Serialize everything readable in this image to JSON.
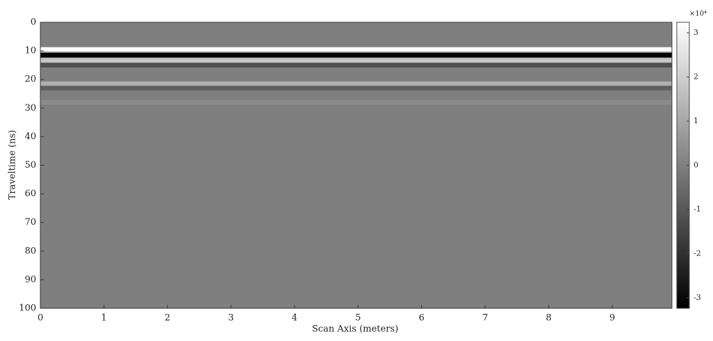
{
  "chart_data": {
    "type": "heatmap",
    "xlabel": "Scan Axis (meters)",
    "ylabel": "Traveltime (ns)",
    "xlim": [
      0,
      9.94
    ],
    "xticks": [
      0,
      1,
      2,
      3,
      4,
      5,
      6,
      7,
      8,
      9
    ],
    "ylim": [
      0,
      100
    ],
    "yticks": [
      0,
      10,
      20,
      30,
      40,
      50,
      60,
      70,
      80,
      90,
      100
    ],
    "y_inverted": true,
    "colorbar_scale": "×10⁴",
    "clim": [
      -3.24,
      3.24
    ],
    "colorbar_ticks": [
      -3,
      -2,
      -1,
      0,
      1,
      2,
      3
    ],
    "colormap": "gray",
    "reflectors": [
      {
        "time": 9.5,
        "amplitude": 3.2
      },
      {
        "time": 11.5,
        "amplitude": -3.2
      },
      {
        "time": 13.3,
        "amplitude": 1.8
      },
      {
        "time": 15,
        "amplitude": -1.2
      },
      {
        "time": 21.5,
        "amplitude": 1.2
      },
      {
        "time": 23,
        "amplitude": -0.8
      },
      {
        "time": 28,
        "amplitude": 0.3
      }
    ]
  }
}
